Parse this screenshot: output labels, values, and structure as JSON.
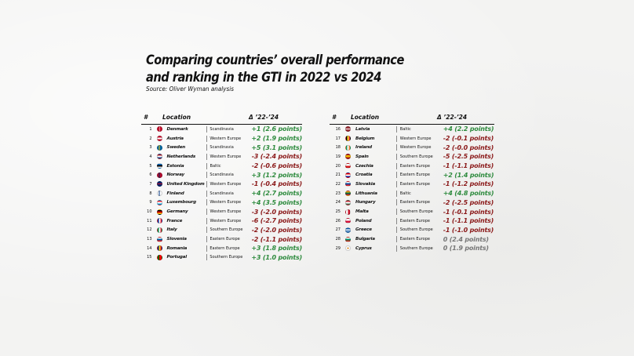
{
  "title_line1": "Comparing countries’ overall performance",
  "title_line2": "and ranking in the GTI in 2022 vs 2024",
  "source": "Source: Oliver Wyman analysis",
  "headers": {
    "num": "#",
    "location": "Location",
    "delta": "Δ ’22-’24"
  },
  "colors": {
    "positive": "#2e8b3e",
    "negative": "#8b1a1a",
    "neutral": "#777777"
  },
  "rows_left": [
    {
      "n": "1",
      "country": "Denmark",
      "region": "Scandinavia",
      "delta": "+1 (2.6 points)",
      "sign": "pos",
      "flag": "denmark-flag-icon"
    },
    {
      "n": "2",
      "country": "Austria",
      "region": "Western Europe",
      "delta": "+2 (1.9 points)",
      "sign": "pos",
      "flag": "austria-flag-icon"
    },
    {
      "n": "3",
      "country": "Sweden",
      "region": "Scandinavia",
      "delta": "+5 (3.1 points)",
      "sign": "pos",
      "flag": "sweden-flag-icon"
    },
    {
      "n": "4",
      "country": "Netherlands",
      "region": "Western Europe",
      "delta": "-3 (-2.4 points)",
      "sign": "neg",
      "flag": "netherlands-flag-icon"
    },
    {
      "n": "5",
      "country": "Estonia",
      "region": "Baltic",
      "delta": "-2 (-0.6 points)",
      "sign": "neg",
      "flag": "estonia-flag-icon"
    },
    {
      "n": "6",
      "country": "Norway",
      "region": "Scandinavia",
      "delta": "+3 (1.2 points)",
      "sign": "pos",
      "flag": "norway-flag-icon"
    },
    {
      "n": "7",
      "country": "United Kingdom",
      "region": "Western Europe",
      "delta": "-1 (-0.4 points)",
      "sign": "neg",
      "flag": "uk-flag-icon"
    },
    {
      "n": "8",
      "country": "Finland",
      "region": "Scandinavia",
      "delta": "+4 (2.7 points)",
      "sign": "pos",
      "flag": "finland-flag-icon"
    },
    {
      "n": "9",
      "country": "Luxembourg",
      "region": "Western Europe",
      "delta": "+4 (3.5 points)",
      "sign": "pos",
      "flag": "luxembourg-flag-icon"
    },
    {
      "n": "10",
      "country": "Germany",
      "region": "Western Europe",
      "delta": "-3 (-2.0 points)",
      "sign": "neg",
      "flag": "germany-flag-icon"
    },
    {
      "n": "11",
      "country": "France",
      "region": "Western Europe",
      "delta": "-6 (-2.7 points)",
      "sign": "neg",
      "flag": "france-flag-icon"
    },
    {
      "n": "12",
      "country": "Italy",
      "region": "Southern Europe",
      "delta": "-2 (-2.0 points)",
      "sign": "neg",
      "flag": "italy-flag-icon"
    },
    {
      "n": "13",
      "country": "Slovenia",
      "region": "Eastern Europe",
      "delta": "-2 (-1.1 points)",
      "sign": "neg",
      "flag": "slovenia-flag-icon"
    },
    {
      "n": "14",
      "country": "Romania",
      "region": "Eastern Europe",
      "delta": "+3 (1.8 points)",
      "sign": "pos",
      "flag": "romania-flag-icon"
    },
    {
      "n": "15",
      "country": "Portugal",
      "region": "Southern Europe",
      "delta": "+3 (1.0 points)",
      "sign": "pos",
      "flag": "portugal-flag-icon"
    }
  ],
  "rows_right": [
    {
      "n": "16",
      "country": "Latvia",
      "region": "Baltic",
      "delta": "+4 (2.2 points)",
      "sign": "pos",
      "flag": "latvia-flag-icon"
    },
    {
      "n": "17",
      "country": "Belgium",
      "region": "Western Europe",
      "delta": "-2 (-0.1 points)",
      "sign": "neg",
      "flag": "belgium-flag-icon"
    },
    {
      "n": "18",
      "country": "Ireland",
      "region": "Western Europe",
      "delta": "-2 (-0.0 points)",
      "sign": "neg",
      "flag": "ireland-flag-icon"
    },
    {
      "n": "19",
      "country": "Spain",
      "region": "Southern Europe",
      "delta": "-5 (-2.5 points)",
      "sign": "neg",
      "flag": "spain-flag-icon"
    },
    {
      "n": "20",
      "country": "Czechia",
      "region": "Eastern Europe",
      "delta": "-1 (-1.1 points)",
      "sign": "neg",
      "flag": "czechia-flag-icon"
    },
    {
      "n": "21",
      "country": "Croatia",
      "region": "Eastern Europe",
      "delta": "+2 (1.4 points)",
      "sign": "pos",
      "flag": "croatia-flag-icon"
    },
    {
      "n": "22",
      "country": "Slovakia",
      "region": "Eastern Europe",
      "delta": "-1 (-1.2 points)",
      "sign": "neg",
      "flag": "slovakia-flag-icon"
    },
    {
      "n": "23",
      "country": "Lithuania",
      "region": "Baltic",
      "delta": "+4 (4.8 points)",
      "sign": "pos",
      "flag": "lithuania-flag-icon"
    },
    {
      "n": "24",
      "country": "Hungary",
      "region": "Eastern Europe",
      "delta": "-2 (-2.5 points)",
      "sign": "neg",
      "flag": "hungary-flag-icon"
    },
    {
      "n": "25",
      "country": "Malta",
      "region": "Southern Europe",
      "delta": "-1 (-0.1 points)",
      "sign": "neg",
      "flag": "malta-flag-icon"
    },
    {
      "n": "26",
      "country": "Poland",
      "region": "Eastern Europe",
      "delta": "-1 (-1.1 points)",
      "sign": "neg",
      "flag": "poland-flag-icon"
    },
    {
      "n": "27",
      "country": "Greece",
      "region": "Southern Europe",
      "delta": "-1 (-1.0 points)",
      "sign": "neg",
      "flag": "greece-flag-icon"
    },
    {
      "n": "28",
      "country": "Bulgaria",
      "region": "Eastern Europe",
      "delta": "0 (2.4 points)",
      "sign": "zero",
      "flag": "bulgaria-flag-icon"
    },
    {
      "n": "29",
      "country": "Cyprus",
      "region": "Southern Europe",
      "delta": "0 (1.9 points)",
      "sign": "zero",
      "flag": "cyprus-flag-icon"
    }
  ],
  "flag_styles": {
    "denmark-flag-icon": "linear-gradient(90deg,#c8102e 38%,#fff 38%,#fff 50%,#c8102e 50%)",
    "austria-flag-icon": "linear-gradient(#c8102e 33%,#fff 33%,#fff 66%,#c8102e 66%)",
    "sweden-flag-icon": "linear-gradient(90deg,#006aa7 35%,#fecc00 35%,#fecc00 50%,#006aa7 50%)",
    "netherlands-flag-icon": "linear-gradient(#ae1c28 33%,#fff 33%,#fff 66%,#21468b 66%)",
    "estonia-flag-icon": "linear-gradient(#0072ce 33%,#000 33%,#000 66%,#fff 66%)",
    "norway-flag-icon": "linear-gradient(90deg,#ba0c2f 35%,#00205b 35%,#00205b 50%,#ba0c2f 50%)",
    "uk-flag-icon": "linear-gradient(#012169 40%,#c8102e 40%,#c8102e 60%,#012169 60%)",
    "finland-flag-icon": "linear-gradient(90deg,#fff 35%,#003580 35%,#003580 50%,#fff 50%)",
    "luxembourg-flag-icon": "linear-gradient(#ed2939 33%,#fff 33%,#fff 66%,#00a1de 66%)",
    "germany-flag-icon": "linear-gradient(#000 33%,#dd0000 33%,#dd0000 66%,#ffce00 66%)",
    "france-flag-icon": "linear-gradient(90deg,#002395 33%,#fff 33%,#fff 66%,#ed2939 66%)",
    "italy-flag-icon": "linear-gradient(90deg,#009246 33%,#fff 33%,#fff 66%,#ce2b37 66%)",
    "slovenia-flag-icon": "linear-gradient(#fff 33%,#005da4 33%,#005da4 66%,#ed1c24 66%)",
    "romania-flag-icon": "linear-gradient(90deg,#002b7f 33%,#fcd116 33%,#fcd116 66%,#ce1126 66%)",
    "portugal-flag-icon": "linear-gradient(90deg,#006600 40%,#ff0000 40%)",
    "latvia-flag-icon": "linear-gradient(#9e3039 40%,#fff 40%,#fff 60%,#9e3039 60%)",
    "belgium-flag-icon": "linear-gradient(90deg,#000 33%,#fdda24 33%,#fdda24 66%,#ef3340 66%)",
    "ireland-flag-icon": "linear-gradient(90deg,#169b62 33%,#fff 33%,#fff 66%,#ff883e 66%)",
    "spain-flag-icon": "linear-gradient(#aa151b 25%,#f1bf00 25%,#f1bf00 75%,#aa151b 75%)",
    "czechia-flag-icon": "linear-gradient(#fff 50%,#d7141a 50%)",
    "croatia-flag-icon": "linear-gradient(#ff0000 33%,#fff 33%,#fff 66%,#171796 66%)",
    "slovakia-flag-icon": "linear-gradient(#fff 33%,#0b4ea2 33%,#0b4ea2 66%,#ee1c25 66%)",
    "lithuania-flag-icon": "linear-gradient(#fdb913 33%,#006a44 33%,#006a44 66%,#c1272d 66%)",
    "hungary-flag-icon": "linear-gradient(#ce2939 33%,#fff 33%,#fff 66%,#477050 66%)",
    "malta-flag-icon": "linear-gradient(90deg,#fff 50%,#cf142b 50%)",
    "poland-flag-icon": "linear-gradient(#fff 50%,#dc143c 50%)",
    "greece-flag-icon": "repeating-linear-gradient(#0d5eaf 0 1.5px,#fff 1.5px 3px)",
    "bulgaria-flag-icon": "linear-gradient(#fff 33%,#00966e 33%,#00966e 66%,#d62612 66%)",
    "cyprus-flag-icon": "radial-gradient(circle,#d57800 25%,#fff 28%)"
  }
}
